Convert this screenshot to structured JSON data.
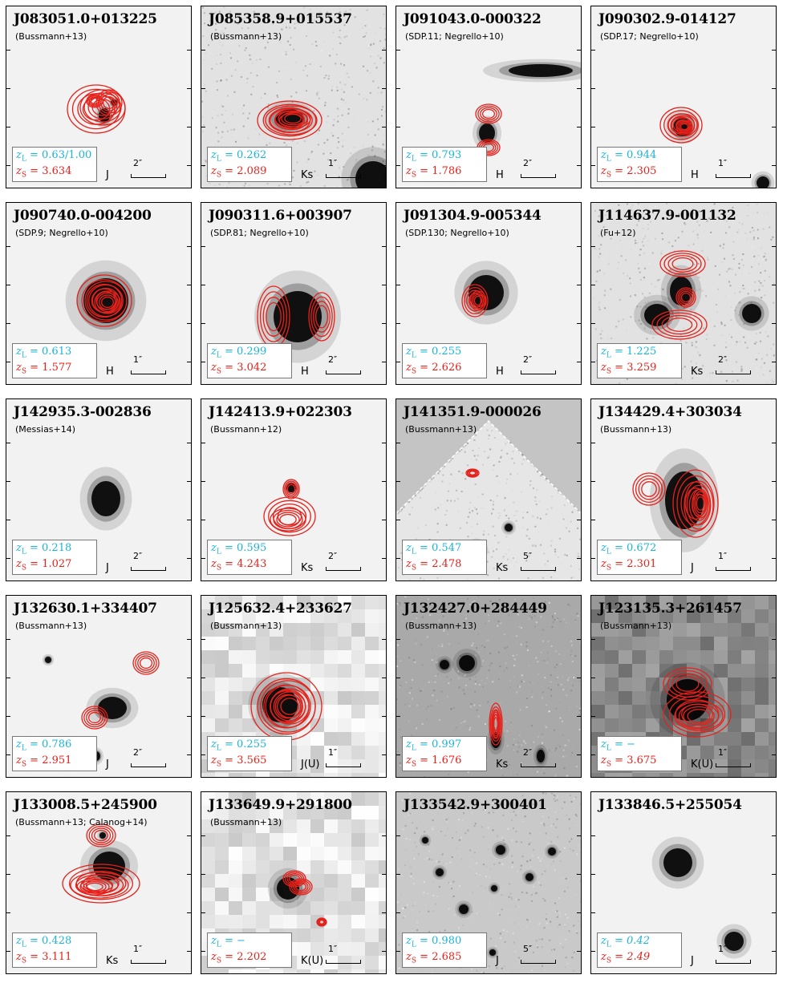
{
  "panels": [
    {
      "id": "J083051.0+013225",
      "ref": "(Bussmann+13)",
      "zL": "0.63/1.00",
      "zS": "3.634",
      "band": "J",
      "scale": "2″",
      "bg": "light",
      "contours": [
        [
          112,
          128,
          36,
          30
        ],
        [
          120,
          126,
          28,
          22
        ],
        [
          128,
          120,
          16,
          16
        ],
        [
          110,
          118,
          10,
          8
        ]
      ],
      "blobs": [
        [
          122,
          136,
          7,
          9
        ],
        [
          134,
          120,
          4,
          4
        ]
      ]
    },
    {
      "id": "J085358.9+015537",
      "ref": "(Bussmann+13)",
      "zL": "0.262",
      "zS": "2.089",
      "band": "Ks",
      "scale": "1″",
      "bg": "grainy",
      "contours": [
        [
          110,
          142,
          40,
          24
        ],
        [
          112,
          142,
          32,
          18
        ],
        [
          114,
          140,
          22,
          12
        ]
      ],
      "blobs": [
        [
          110,
          140,
          18,
          12
        ],
        [
          214,
          215,
          22,
          22
        ]
      ]
    },
    {
      "id": "J091043.0-000322",
      "ref": "(SDP.11; Negrello+10)",
      "zL": "0.793",
      "zS": "1.786",
      "band": "H",
      "scale": "2″",
      "bg": "light",
      "contours": [
        [
          115,
          134,
          16,
          12
        ],
        [
          115,
          176,
          14,
          10
        ]
      ],
      "blobs": [
        [
          113,
          158,
          10,
          12
        ],
        [
          180,
          80,
          40,
          8
        ]
      ]
    },
    {
      "id": "J090302.9-014127",
      "ref": "(SDP.17; Negrello+10)",
      "zL": "0.944",
      "zS": "2.305",
      "band": "H",
      "scale": "1″",
      "bg": "light",
      "contours": [
        [
          112,
          148,
          26,
          22
        ],
        [
          114,
          148,
          18,
          14
        ],
        [
          116,
          150,
          10,
          8
        ]
      ],
      "blobs": [
        [
          114,
          150,
          12,
          12
        ],
        [
          214,
          220,
          8,
          8
        ]
      ]
    },
    {
      "id": "J090740.0-004200",
      "ref": "(SDP.9; Negrello+10)",
      "zL": "0.613",
      "zS": "1.577",
      "band": "H",
      "scale": "1″",
      "bg": "light",
      "contours": [
        [
          122,
          122,
          34,
          32
        ],
        [
          124,
          122,
          26,
          24
        ],
        [
          126,
          124,
          16,
          14
        ]
      ],
      "blobs": [
        [
          124,
          122,
          28,
          28
        ]
      ]
    },
    {
      "id": "J090311.6+003907",
      "ref": "(SDP.81; Negrello+10)",
      "zL": "0.299",
      "zS": "3.042",
      "band": "H",
      "scale": "2″",
      "bg": "light",
      "contours": [
        [
          90,
          142,
          20,
          38
        ],
        [
          150,
          142,
          16,
          30
        ]
      ],
      "blobs": [
        [
          120,
          142,
          30,
          32
        ]
      ]
    },
    {
      "id": "J091304.9-005344",
      "ref": "(SDP.130; Negrello+10)",
      "zL": "0.255",
      "zS": "2.626",
      "band": "H",
      "scale": "2″",
      "bg": "light",
      "contours": [
        [
          98,
          122,
          16,
          20
        ],
        [
          102,
          122,
          10,
          12
        ]
      ],
      "blobs": [
        [
          112,
          112,
          22,
          22
        ]
      ]
    },
    {
      "id": "J114637.9-001132",
      "ref": "(Fu+12)",
      "zL": "1.225",
      "zS": "3.259",
      "band": "Ks",
      "scale": "2″",
      "bg": "grainy",
      "contours": [
        [
          114,
          76,
          28,
          16
        ],
        [
          118,
          118,
          12,
          12
        ],
        [
          110,
          152,
          34,
          18
        ]
      ],
      "blobs": [
        [
          112,
          110,
          14,
          18
        ],
        [
          82,
          140,
          16,
          14
        ],
        [
          200,
          138,
          12,
          12
        ]
      ]
    },
    {
      "id": "J142935.3-002836",
      "ref": "(Messias+14)",
      "zL": "0.218",
      "zS": "1.027",
      "band": "J",
      "scale": "2″",
      "bg": "light",
      "contours": [],
      "blobs": [
        [
          124,
          124,
          18,
          22
        ]
      ]
    },
    {
      "id": "J142413.9+022303",
      "ref": "(Bussmann+12)",
      "zL": "0.595",
      "zS": "4.243",
      "band": "Ks",
      "scale": "2″",
      "bg": "light",
      "contours": [
        [
          110,
          146,
          32,
          24
        ],
        [
          108,
          150,
          22,
          14
        ],
        [
          112,
          112,
          10,
          12
        ]
      ],
      "blobs": [
        [
          112,
          110,
          6,
          6
        ]
      ]
    },
    {
      "id": "J141351.9-000026",
      "ref": "(Bussmann+13)",
      "zL": "0.547",
      "zS": "2.478",
      "band": "Ks",
      "scale": "5″",
      "bg": "diamond",
      "contours": [
        [
          95,
          92,
          8,
          5
        ]
      ],
      "blobs": [
        [
          100,
          188,
          8,
          8
        ],
        [
          140,
          160,
          5,
          5
        ],
        [
          60,
          190,
          4,
          4
        ]
      ]
    },
    {
      "id": "J134429.4+303034",
      "ref": "(Bussmann+13)",
      "zL": "0.672",
      "zS": "2.301",
      "band": "J",
      "scale": "1″",
      "bg": "light",
      "contours": [
        [
          72,
          112,
          20,
          20
        ],
        [
          130,
          130,
          28,
          42
        ],
        [
          134,
          132,
          18,
          30
        ],
        [
          136,
          130,
          10,
          18
        ]
      ],
      "blobs": [
        [
          116,
          126,
          24,
          36
        ]
      ]
    },
    {
      "id": "J132630.1+334407",
      "ref": "(Bussmann+13)",
      "zL": "0.786",
      "zS": "2.951",
      "band": "J",
      "scale": "2″",
      "bg": "light",
      "contours": [
        [
          174,
          84,
          16,
          14
        ],
        [
          110,
          152,
          16,
          14
        ]
      ],
      "blobs": [
        [
          132,
          140,
          18,
          14
        ],
        [
          52,
          80,
          4,
          4
        ],
        [
          112,
          200,
          5,
          6
        ]
      ]
    },
    {
      "id": "J125632.4+233627",
      "ref": "(Bussmann+13)",
      "zL": "0.255",
      "zS": "3.565",
      "band": "J(U)",
      "scale": "1″",
      "bg": "pixel",
      "contours": [
        [
          106,
          138,
          44,
          42
        ],
        [
          108,
          138,
          34,
          32
        ],
        [
          110,
          138,
          24,
          22
        ]
      ],
      "blobs": [
        [
          98,
          136,
          22,
          22
        ]
      ]
    },
    {
      "id": "J132427.0+284449",
      "ref": "(Bussmann+13)",
      "zL": "0.997",
      "zS": "1.676",
      "band": "Ks",
      "scale": "2″",
      "bg": "mid",
      "contours": [
        [
          124,
          160,
          8,
          26
        ],
        [
          124,
          160,
          5,
          18
        ]
      ],
      "blobs": [
        [
          88,
          84,
          10,
          10
        ],
        [
          60,
          86,
          6,
          6
        ],
        [
          124,
          180,
          6,
          10
        ],
        [
          180,
          200,
          5,
          8
        ]
      ]
    },
    {
      "id": "J123135.3+261457",
      "ref": "(Bussmann+13)",
      "zL": "−",
      "zS": "3.675",
      "band": "K(U)",
      "scale": "1″",
      "bg": "pixeldark",
      "contours": [
        [
          120,
          110,
          30,
          20
        ],
        [
          132,
          148,
          42,
          28
        ],
        [
          134,
          150,
          30,
          18
        ]
      ],
      "blobs": [
        [
          120,
          130,
          26,
          26
        ]
      ]
    },
    {
      "id": "J133008.5+245900",
      "ref": "(Bussmann+13; Calanog+14)",
      "zL": "0.428",
      "zS": "3.111",
      "band": "Ks",
      "scale": "1″",
      "bg": "light",
      "contours": [
        [
          118,
          54,
          18,
          14
        ],
        [
          118,
          114,
          48,
          24
        ],
        [
          116,
          116,
          36,
          16
        ],
        [
          110,
          118,
          22,
          10
        ]
      ],
      "blobs": [
        [
          128,
          92,
          20,
          18
        ],
        [
          120,
          54,
          4,
          4
        ]
      ]
    },
    {
      "id": "J133649.9+291800",
      "ref": "(Bussmann+13)",
      "zL": "−",
      "zS": "2.202",
      "band": "K(U)",
      "scale": "1″",
      "bg": "pixel",
      "contours": [
        [
          116,
          108,
          14,
          10
        ],
        [
          124,
          118,
          14,
          10
        ],
        [
          150,
          162,
          6,
          5
        ]
      ],
      "blobs": [
        [
          108,
          120,
          14,
          14
        ]
      ]
    },
    {
      "id": "J133542.9+300401",
      "ref": "",
      "zL": "0.980",
      "zS": "2.685",
      "band": "J",
      "scale": "5″",
      "bg": "field",
      "contours": [],
      "blobs": [
        [
          130,
          72,
          6,
          6
        ],
        [
          54,
          100,
          5,
          5
        ],
        [
          166,
          106,
          5,
          5
        ],
        [
          84,
          146,
          6,
          6
        ],
        [
          122,
          120,
          4,
          4
        ],
        [
          194,
          74,
          5,
          5
        ],
        [
          120,
          200,
          4,
          4
        ],
        [
          36,
          60,
          4,
          4
        ]
      ]
    },
    {
      "id": "J133846.5+255054",
      "ref": "",
      "zL": "0.42",
      "zS": "2.49",
      "band": "J",
      "scale": "1″",
      "bg": "light",
      "contours": [],
      "blobs": [
        [
          108,
          88,
          18,
          18
        ],
        [
          178,
          186,
          12,
          12
        ]
      ],
      "italic": true
    }
  ]
}
